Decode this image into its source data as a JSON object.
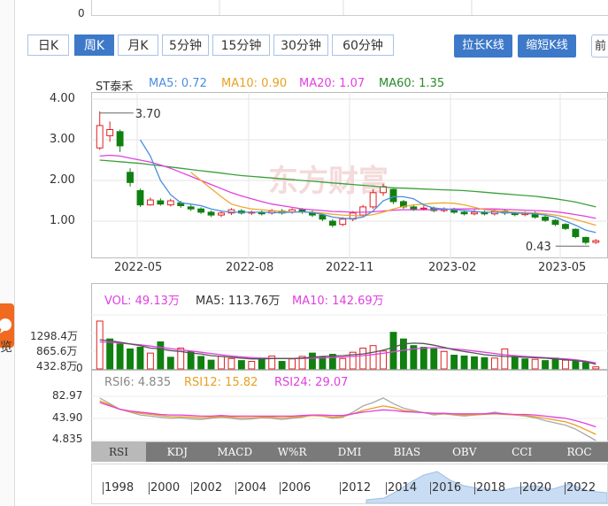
{
  "top_chart": {
    "zero_label": "0"
  },
  "period_tabs": [
    "日K",
    "周K",
    "月K",
    "5分钟",
    "15分钟",
    "30分钟",
    "60分钟"
  ],
  "active_tab": "周K",
  "actions": {
    "stretch_label": "拉长K线",
    "shrink_label": "缩短K线",
    "edge_partial": "前"
  },
  "left_strip": {
    "partial_char": "览"
  },
  "main_chart": {
    "stock_name": "ST泰禾",
    "ma5": "MA5: 0.72",
    "ma10": "MA10: 0.90",
    "ma20": "MA20: 1.07",
    "ma60": "MA60: 1.35",
    "colors": {
      "ma5": "#4a8de0",
      "ma10": "#f0a830",
      "ma20": "#e040e0",
      "ma60": "#3aa03a",
      "up": "#e02020",
      "down": "#108010"
    },
    "y_ticks": [
      "4.00",
      "3.00",
      "2.00",
      "1.00"
    ],
    "x_ticks": [
      "2022-05",
      "2022-08",
      "2022-11",
      "2023-02",
      "2023-05"
    ],
    "high_annotation": "3.70",
    "low_annotation": "0.43",
    "watermark": "东方财富"
  },
  "chart_data": [
    {
      "type": "candlestick",
      "title": "ST泰禾",
      "x_ticks": [
        "2022-05",
        "2022-08",
        "2022-11",
        "2023-02",
        "2023-05"
      ],
      "ylim": [
        0.43,
        4.0
      ],
      "candles": [
        {
          "o": 2.8,
          "c": 3.35,
          "h": 3.7,
          "l": 2.75
        },
        {
          "o": 3.1,
          "c": 3.25,
          "h": 3.45,
          "l": 2.95
        },
        {
          "o": 3.2,
          "c": 2.85,
          "h": 3.25,
          "l": 2.7
        },
        {
          "o": 2.2,
          "c": 1.95,
          "h": 2.3,
          "l": 1.85
        },
        {
          "o": 1.75,
          "c": 1.4,
          "h": 1.8,
          "l": 1.35
        },
        {
          "o": 1.4,
          "c": 1.52,
          "h": 1.58,
          "l": 1.38
        },
        {
          "o": 1.5,
          "c": 1.42,
          "h": 1.56,
          "l": 1.38
        },
        {
          "o": 1.4,
          "c": 1.5,
          "h": 1.55,
          "l": 1.36
        },
        {
          "o": 1.45,
          "c": 1.38,
          "h": 1.5,
          "l": 1.33
        },
        {
          "o": 1.35,
          "c": 1.3,
          "h": 1.4,
          "l": 1.25
        },
        {
          "o": 1.3,
          "c": 1.22,
          "h": 1.34,
          "l": 1.18
        },
        {
          "o": 1.22,
          "c": 1.15,
          "h": 1.26,
          "l": 1.1
        },
        {
          "o": 1.15,
          "c": 1.2,
          "h": 1.25,
          "l": 1.1
        },
        {
          "o": 1.2,
          "c": 1.28,
          "h": 1.32,
          "l": 1.15
        },
        {
          "o": 1.25,
          "c": 1.2,
          "h": 1.3,
          "l": 1.16
        },
        {
          "o": 1.2,
          "c": 1.22,
          "h": 1.26,
          "l": 1.15
        },
        {
          "o": 1.22,
          "c": 1.18,
          "h": 1.26,
          "l": 1.14
        },
        {
          "o": 1.2,
          "c": 1.25,
          "h": 1.3,
          "l": 1.16
        },
        {
          "o": 1.25,
          "c": 1.2,
          "h": 1.3,
          "l": 1.16
        },
        {
          "o": 1.22,
          "c": 1.28,
          "h": 1.32,
          "l": 1.18
        },
        {
          "o": 1.28,
          "c": 1.22,
          "h": 1.32,
          "l": 1.18
        },
        {
          "o": 1.22,
          "c": 1.15,
          "h": 1.26,
          "l": 1.1
        },
        {
          "o": 1.15,
          "c": 1.05,
          "h": 1.18,
          "l": 1.0
        },
        {
          "o": 1.0,
          "c": 0.9,
          "h": 1.05,
          "l": 0.85
        },
        {
          "o": 0.92,
          "c": 1.05,
          "h": 1.1,
          "l": 0.88
        },
        {
          "o": 1.05,
          "c": 1.2,
          "h": 1.25,
          "l": 1.0
        },
        {
          "o": 1.15,
          "c": 1.35,
          "h": 1.4,
          "l": 1.1
        },
        {
          "o": 1.35,
          "c": 1.7,
          "h": 1.78,
          "l": 1.3
        },
        {
          "o": 1.7,
          "c": 1.85,
          "h": 1.92,
          "l": 1.62
        },
        {
          "o": 1.78,
          "c": 1.48,
          "h": 1.8,
          "l": 1.42
        },
        {
          "o": 1.48,
          "c": 1.35,
          "h": 1.52,
          "l": 1.3
        },
        {
          "o": 1.35,
          "c": 1.28,
          "h": 1.4,
          "l": 1.25
        },
        {
          "o": 1.3,
          "c": 1.32,
          "h": 1.38,
          "l": 1.26
        },
        {
          "o": 1.32,
          "c": 1.26,
          "h": 1.36,
          "l": 1.22
        },
        {
          "o": 1.26,
          "c": 1.3,
          "h": 1.34,
          "l": 1.22
        },
        {
          "o": 1.3,
          "c": 1.22,
          "h": 1.33,
          "l": 1.18
        },
        {
          "o": 1.22,
          "c": 1.18,
          "h": 1.26,
          "l": 1.14
        },
        {
          "o": 1.18,
          "c": 1.22,
          "h": 1.28,
          "l": 1.14
        },
        {
          "o": 1.22,
          "c": 1.18,
          "h": 1.26,
          "l": 1.14
        },
        {
          "o": 1.18,
          "c": 1.25,
          "h": 1.3,
          "l": 1.14
        },
        {
          "o": 1.25,
          "c": 1.2,
          "h": 1.28,
          "l": 1.15
        },
        {
          "o": 1.2,
          "c": 1.16,
          "h": 1.24,
          "l": 1.12
        },
        {
          "o": 1.16,
          "c": 1.2,
          "h": 1.24,
          "l": 1.12
        },
        {
          "o": 1.2,
          "c": 1.1,
          "h": 1.24,
          "l": 1.06
        },
        {
          "o": 1.1,
          "c": 1.02,
          "h": 1.14,
          "l": 0.98
        },
        {
          "o": 1.02,
          "c": 0.92,
          "h": 1.05,
          "l": 0.88
        },
        {
          "o": 0.92,
          "c": 0.82,
          "h": 0.95,
          "l": 0.78
        },
        {
          "o": 0.8,
          "c": 0.62,
          "h": 0.82,
          "l": 0.58
        },
        {
          "o": 0.6,
          "c": 0.48,
          "h": 0.62,
          "l": 0.43
        },
        {
          "o": 0.48,
          "c": 0.52,
          "h": 0.56,
          "l": 0.44
        }
      ],
      "ma5": [
        null,
        null,
        null,
        null,
        3.0,
        2.6,
        2.0,
        1.65,
        1.45,
        1.42,
        1.38,
        1.3,
        1.25,
        1.22,
        1.22,
        1.22,
        1.22,
        1.21,
        1.21,
        1.22,
        1.23,
        1.21,
        1.17,
        1.1,
        1.07,
        1.06,
        1.1,
        1.25,
        1.5,
        1.6,
        1.6,
        1.55,
        1.4,
        1.32,
        1.3,
        1.28,
        1.26,
        1.24,
        1.22,
        1.22,
        1.21,
        1.2,
        1.19,
        1.18,
        1.15,
        1.1,
        1.0,
        0.9,
        0.78,
        0.72
      ],
      "ma10": [
        null,
        null,
        null,
        null,
        null,
        null,
        null,
        null,
        null,
        2.2,
        2.0,
        1.8,
        1.6,
        1.42,
        1.35,
        1.3,
        1.28,
        1.26,
        1.24,
        1.23,
        1.22,
        1.22,
        1.2,
        1.17,
        1.15,
        1.14,
        1.13,
        1.16,
        1.22,
        1.3,
        1.36,
        1.4,
        1.42,
        1.44,
        1.45,
        1.44,
        1.4,
        1.34,
        1.28,
        1.26,
        1.24,
        1.22,
        1.21,
        1.2,
        1.18,
        1.15,
        1.1,
        1.04,
        0.97,
        0.9
      ],
      "ma20": [
        2.6,
        2.62,
        2.6,
        2.55,
        2.5,
        2.45,
        2.38,
        2.3,
        2.2,
        2.1,
        2.0,
        1.9,
        1.8,
        1.7,
        1.62,
        1.55,
        1.48,
        1.42,
        1.38,
        1.34,
        1.3,
        1.28,
        1.26,
        1.24,
        1.23,
        1.22,
        1.22,
        1.23,
        1.25,
        1.27,
        1.28,
        1.28,
        1.28,
        1.28,
        1.29,
        1.3,
        1.3,
        1.3,
        1.3,
        1.3,
        1.29,
        1.28,
        1.27,
        1.26,
        1.25,
        1.23,
        1.2,
        1.16,
        1.12,
        1.07
      ],
      "ma60": [
        2.5,
        2.48,
        2.46,
        2.44,
        2.42,
        2.39,
        2.36,
        2.33,
        2.3,
        2.27,
        2.24,
        2.21,
        2.18,
        2.15,
        2.12,
        2.1,
        2.08,
        2.06,
        2.04,
        2.02,
        2.0,
        1.98,
        1.96,
        1.94,
        1.92,
        1.9,
        1.88,
        1.86,
        1.84,
        1.82,
        1.81,
        1.8,
        1.79,
        1.78,
        1.77,
        1.76,
        1.75,
        1.73,
        1.71,
        1.69,
        1.67,
        1.65,
        1.63,
        1.61,
        1.58,
        1.55,
        1.51,
        1.47,
        1.41,
        1.35
      ]
    },
    {
      "type": "bar",
      "title": "VOL",
      "legend": [
        "VOL: 49.13万",
        "MA5: 113.76万",
        "MA10: 142.69万"
      ],
      "y_ticks": [
        "1298.4万",
        "865.6万",
        "432.8万",
        "0"
      ],
      "ylim": [
        0,
        1298.4
      ],
      "values": [
        1150,
        720,
        600,
        480,
        520,
        380,
        650,
        280,
        500,
        420,
        300,
        210,
        300,
        250,
        200,
        180,
        260,
        310,
        180,
        240,
        300,
        380,
        290,
        350,
        250,
        400,
        500,
        560,
        430,
        880,
        720,
        560,
        520,
        480,
        420,
        330,
        310,
        290,
        270,
        260,
        480,
        300,
        240,
        230,
        200,
        260,
        210,
        180,
        150,
        49.13
      ],
      "up": [
        true,
        false,
        false,
        false,
        false,
        true,
        false,
        false,
        true,
        false,
        false,
        false,
        true,
        true,
        false,
        true,
        false,
        true,
        false,
        true,
        true,
        false,
        false,
        false,
        true,
        true,
        true,
        true,
        true,
        false,
        false,
        false,
        false,
        false,
        true,
        false,
        false,
        false,
        false,
        true,
        true,
        false,
        false,
        true,
        false,
        false,
        true,
        false,
        false,
        true
      ],
      "ma5": [
        700,
        680,
        640,
        600,
        560,
        500,
        480,
        440,
        420,
        380,
        360,
        320,
        300,
        280,
        260,
        240,
        240,
        250,
        250,
        250,
        260,
        280,
        300,
        310,
        320,
        340,
        360,
        400,
        450,
        520,
        600,
        620,
        610,
        570,
        520,
        460,
        420,
        380,
        340,
        320,
        300,
        290,
        280,
        270,
        260,
        240,
        220,
        200,
        170,
        113.76
      ],
      "ma10": [
        650,
        640,
        620,
        600,
        580,
        550,
        520,
        490,
        460,
        430,
        400,
        370,
        340,
        310,
        290,
        270,
        260,
        255,
        250,
        250,
        252,
        258,
        265,
        275,
        285,
        300,
        320,
        345,
        375,
        410,
        450,
        480,
        500,
        510,
        500,
        480,
        460,
        430,
        400,
        370,
        340,
        320,
        300,
        285,
        270,
        255,
        240,
        220,
        190,
        142.69
      ]
    },
    {
      "type": "line",
      "title": "RSI",
      "legend": [
        "RSI6: 4.835",
        "RSI12: 15.82",
        "RSI24: 29.07"
      ],
      "y_ticks": [
        "82.97",
        "43.90",
        "4.835"
      ],
      "ylim": [
        4.835,
        82.97
      ],
      "series": [
        {
          "name": "RSI6",
          "values": [
            80,
            70,
            60,
            55,
            50,
            48,
            46,
            44,
            45,
            43,
            42,
            44,
            46,
            44,
            42,
            43,
            45,
            44,
            42,
            44,
            46,
            50,
            48,
            44,
            46,
            55,
            66,
            72,
            80,
            70,
            62,
            58,
            54,
            50,
            52,
            50,
            48,
            50,
            52,
            55,
            52,
            50,
            48,
            45,
            40,
            36,
            32,
            25,
            15,
            4.835
          ]
        },
        {
          "name": "RSI12",
          "values": [
            75,
            68,
            60,
            56,
            53,
            51,
            49,
            47,
            47,
            46,
            45,
            46,
            47,
            46,
            45,
            45,
            46,
            46,
            45,
            46,
            47,
            49,
            48,
            46,
            47,
            52,
            58,
            62,
            66,
            63,
            58,
            56,
            54,
            52,
            52,
            51,
            50,
            50,
            51,
            52,
            51,
            50,
            49,
            47,
            44,
            41,
            38,
            32,
            24,
            15.82
          ]
        },
        {
          "name": "RSI24",
          "values": [
            72,
            66,
            60,
            57,
            55,
            53,
            51,
            50,
            50,
            49,
            48,
            48,
            49,
            48,
            48,
            48,
            48,
            48,
            48,
            48,
            49,
            50,
            50,
            49,
            49,
            52,
            55,
            57,
            59,
            58,
            56,
            55,
            54,
            53,
            53,
            52,
            52,
            52,
            52,
            53,
            52,
            51,
            51,
            50,
            48,
            46,
            44,
            40,
            35,
            29.07
          ]
        }
      ]
    }
  ],
  "indicator_tabs": [
    "RSI",
    "KDJ",
    "MACD",
    "W%R",
    "DMI",
    "BIAS",
    "OBV",
    "CCI",
    "ROC"
  ],
  "active_indicator": "RSI",
  "timeline_years": [
    "1998",
    "2000",
    "2002",
    "2004",
    "2006",
    "2012",
    "2014",
    "2016",
    "2018",
    "2020",
    "2022"
  ]
}
